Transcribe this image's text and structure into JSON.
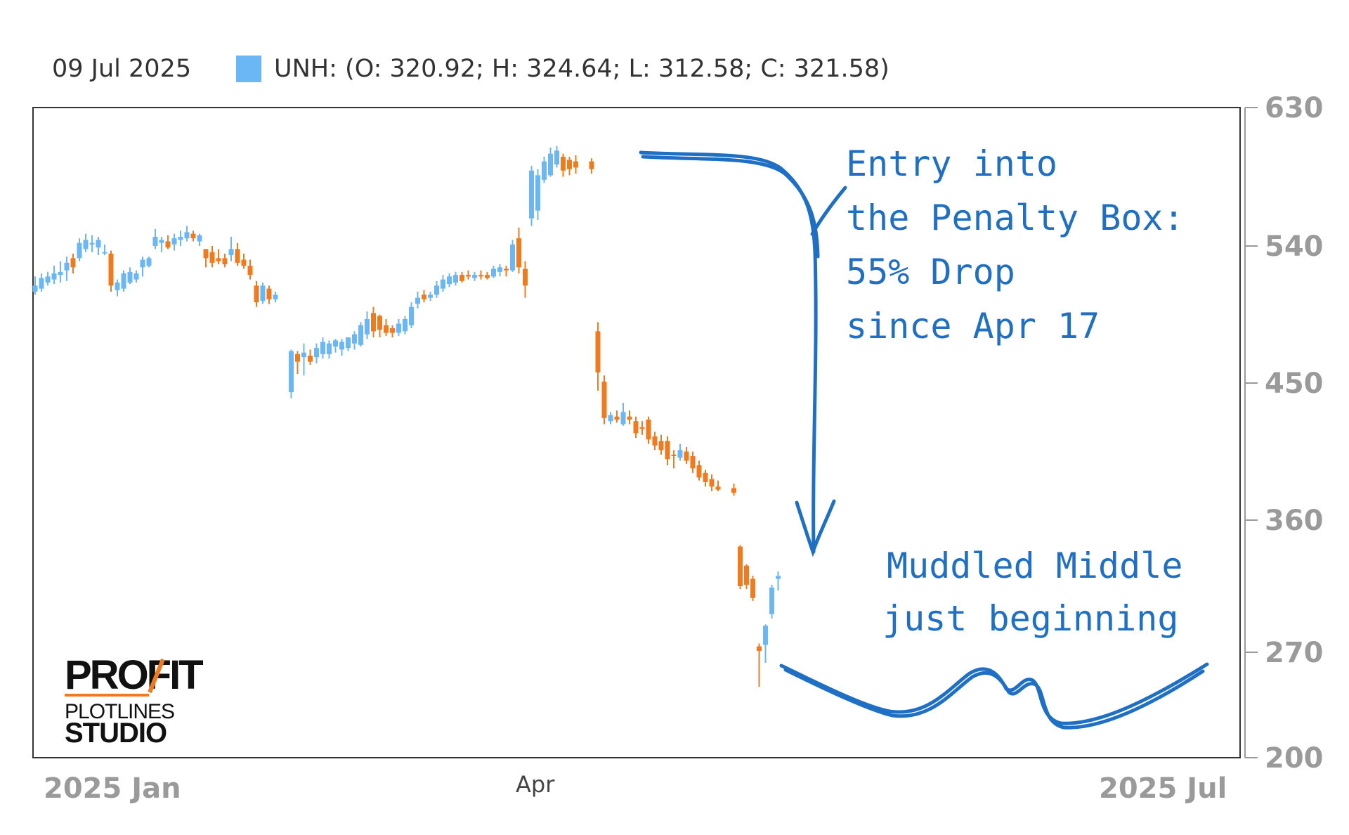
{
  "header": {
    "date": "09 Jul 2025",
    "ohlc": "UNH: (O: 320.92; H: 324.64; L: 312.58; C: 321.58)"
  },
  "annotations": {
    "entry_lines": [
      "Entry into",
      "the Penalty Box:",
      "55% Drop",
      "since Apr 17"
    ],
    "muddled_lines": [
      "Muddled Middle",
      "just beginning"
    ]
  },
  "logo": {
    "top": "PROFIT",
    "middle": "PLOTLINES",
    "bottom": "STUDIO"
  },
  "colors": {
    "up": "#6bb7f5",
    "down": "#f07a1e",
    "note": "#1f6fc5",
    "axis": "#9a9a9a"
  },
  "chart_data": {
    "type": "candlestick",
    "series": [
      {
        "name": "UNH"
      }
    ],
    "ylim": [
      200,
      630
    ],
    "yticks": [
      630,
      540,
      450,
      360,
      270,
      200
    ],
    "xlabels": [
      "2025 Jan",
      "Apr",
      "2025 Jul"
    ],
    "candles": [
      {
        "o": 510,
        "h": 520,
        "l": 508,
        "c": 514
      },
      {
        "o": 512,
        "h": 522,
        "l": 510,
        "c": 519
      },
      {
        "o": 516,
        "h": 523,
        "l": 514,
        "c": 520
      },
      {
        "o": 518,
        "h": 527,
        "l": 515,
        "c": 522
      },
      {
        "o": 521,
        "h": 530,
        "l": 516,
        "c": 523
      },
      {
        "o": 524,
        "h": 533,
        "l": 517,
        "c": 529
      },
      {
        "o": 532,
        "h": 535,
        "l": 522,
        "c": 526
      },
      {
        "o": 532,
        "h": 545,
        "l": 530,
        "c": 542
      },
      {
        "o": 538,
        "h": 548,
        "l": 536,
        "c": 544
      },
      {
        "o": 541,
        "h": 547,
        "l": 536,
        "c": 542
      },
      {
        "o": 539,
        "h": 546,
        "l": 534,
        "c": 544
      },
      {
        "o": 536,
        "h": 541,
        "l": 534,
        "c": 536
      },
      {
        "o": 535,
        "h": 537,
        "l": 510,
        "c": 514
      },
      {
        "o": 511,
        "h": 518,
        "l": 507,
        "c": 516
      },
      {
        "o": 512,
        "h": 524,
        "l": 510,
        "c": 522
      },
      {
        "o": 516,
        "h": 526,
        "l": 515,
        "c": 523
      },
      {
        "o": 518,
        "h": 524,
        "l": 516,
        "c": 522
      },
      {
        "o": 526,
        "h": 533,
        "l": 520,
        "c": 531
      },
      {
        "o": 527,
        "h": 533,
        "l": 526,
        "c": 532
      },
      {
        "o": 540,
        "h": 551,
        "l": 538,
        "c": 546
      },
      {
        "o": 542,
        "h": 546,
        "l": 536,
        "c": 544
      },
      {
        "o": 543,
        "h": 547,
        "l": 538,
        "c": 539
      },
      {
        "o": 541,
        "h": 548,
        "l": 537,
        "c": 545
      },
      {
        "o": 544,
        "h": 550,
        "l": 540,
        "c": 546
      },
      {
        "o": 545,
        "h": 553,
        "l": 543,
        "c": 549
      },
      {
        "o": 548,
        "h": 550,
        "l": 543,
        "c": 545
      },
      {
        "o": 543,
        "h": 548,
        "l": 540,
        "c": 547
      },
      {
        "o": 538,
        "h": 538,
        "l": 526,
        "c": 532
      },
      {
        "o": 536,
        "h": 540,
        "l": 526,
        "c": 529
      },
      {
        "o": 532,
        "h": 538,
        "l": 528,
        "c": 530
      },
      {
        "o": 532,
        "h": 535,
        "l": 526,
        "c": 528
      },
      {
        "o": 534,
        "h": 546,
        "l": 530,
        "c": 538
      },
      {
        "o": 538,
        "h": 542,
        "l": 527,
        "c": 529
      },
      {
        "o": 531,
        "h": 535,
        "l": 525,
        "c": 527
      },
      {
        "o": 527,
        "h": 531,
        "l": 518,
        "c": 521
      },
      {
        "o": 514,
        "h": 517,
        "l": 500,
        "c": 503
      },
      {
        "o": 504,
        "h": 516,
        "l": 502,
        "c": 514
      },
      {
        "o": 512,
        "h": 514,
        "l": 502,
        "c": 505
      },
      {
        "o": 505,
        "h": 510,
        "l": 503,
        "c": 508
      },
      {
        "o": 444,
        "h": 472,
        "l": 440,
        "c": 471
      },
      {
        "o": 469,
        "h": 471,
        "l": 456,
        "c": 464
      },
      {
        "o": 467,
        "h": 476,
        "l": 455,
        "c": 470
      },
      {
        "o": 468,
        "h": 472,
        "l": 462,
        "c": 464
      },
      {
        "o": 467,
        "h": 476,
        "l": 463,
        "c": 473
      },
      {
        "o": 469,
        "h": 480,
        "l": 466,
        "c": 477
      },
      {
        "o": 469,
        "h": 478,
        "l": 466,
        "c": 476
      },
      {
        "o": 474,
        "h": 479,
        "l": 470,
        "c": 478
      },
      {
        "o": 472,
        "h": 479,
        "l": 468,
        "c": 477
      },
      {
        "o": 473,
        "h": 480,
        "l": 471,
        "c": 480
      },
      {
        "o": 476,
        "h": 484,
        "l": 472,
        "c": 482
      },
      {
        "o": 475,
        "h": 490,
        "l": 474,
        "c": 488
      },
      {
        "o": 482,
        "h": 497,
        "l": 479,
        "c": 492
      },
      {
        "o": 496,
        "h": 500,
        "l": 480,
        "c": 484
      },
      {
        "o": 494,
        "h": 495,
        "l": 480,
        "c": 485
      },
      {
        "o": 488,
        "h": 492,
        "l": 481,
        "c": 483
      },
      {
        "o": 486,
        "h": 488,
        "l": 480,
        "c": 483
      },
      {
        "o": 483,
        "h": 492,
        "l": 481,
        "c": 489
      },
      {
        "o": 484,
        "h": 494,
        "l": 482,
        "c": 492
      },
      {
        "o": 488,
        "h": 503,
        "l": 486,
        "c": 500
      },
      {
        "o": 502,
        "h": 510,
        "l": 499,
        "c": 506
      },
      {
        "o": 508,
        "h": 511,
        "l": 503,
        "c": 505
      },
      {
        "o": 506,
        "h": 510,
        "l": 504,
        "c": 508
      },
      {
        "o": 508,
        "h": 517,
        "l": 506,
        "c": 514
      },
      {
        "o": 512,
        "h": 521,
        "l": 510,
        "c": 518
      },
      {
        "o": 515,
        "h": 522,
        "l": 513,
        "c": 520
      },
      {
        "o": 516,
        "h": 523,
        "l": 514,
        "c": 521
      },
      {
        "o": 521,
        "h": 523,
        "l": 516,
        "c": 517
      },
      {
        "o": 521,
        "h": 524,
        "l": 518,
        "c": 520
      },
      {
        "o": 519,
        "h": 523,
        "l": 517,
        "c": 521
      },
      {
        "o": 521,
        "h": 524,
        "l": 518,
        "c": 520
      },
      {
        "o": 521,
        "h": 523,
        "l": 518,
        "c": 519
      },
      {
        "o": 520,
        "h": 527,
        "l": 519,
        "c": 525
      },
      {
        "o": 523,
        "h": 528,
        "l": 520,
        "c": 526
      },
      {
        "o": 525,
        "h": 527,
        "l": 520,
        "c": 524
      },
      {
        "o": 524,
        "h": 544,
        "l": 523,
        "c": 541
      },
      {
        "o": 545,
        "h": 552,
        "l": 522,
        "c": 526
      },
      {
        "o": 525,
        "h": 530,
        "l": 506,
        "c": 514
      },
      {
        "o": 558,
        "h": 592,
        "l": 553,
        "c": 589
      },
      {
        "o": 563,
        "h": 590,
        "l": 557,
        "c": 586
      },
      {
        "o": 583,
        "h": 598,
        "l": 581,
        "c": 595
      },
      {
        "o": 586,
        "h": 604,
        "l": 585,
        "c": 600
      },
      {
        "o": 593,
        "h": 605,
        "l": 591,
        "c": 602
      },
      {
        "o": 598,
        "h": 600,
        "l": 585,
        "c": 589
      },
      {
        "o": 596,
        "h": 598,
        "l": 586,
        "c": 590
      },
      {
        "o": 595,
        "h": 599,
        "l": 587,
        "c": 591
      },
      {
        "o": 595,
        "h": 597,
        "l": 587,
        "c": 590
      },
      {
        "o": 484,
        "h": 490,
        "l": 445,
        "c": 457
      },
      {
        "o": 451,
        "h": 455,
        "l": 423,
        "c": 427
      },
      {
        "o": 425,
        "h": 431,
        "l": 423,
        "c": 429
      },
      {
        "o": 428,
        "h": 432,
        "l": 424,
        "c": 426
      },
      {
        "o": 423,
        "h": 437,
        "l": 422,
        "c": 431
      },
      {
        "o": 428,
        "h": 432,
        "l": 423,
        "c": 426
      },
      {
        "o": 425,
        "h": 428,
        "l": 414,
        "c": 417
      },
      {
        "o": 421,
        "h": 425,
        "l": 416,
        "c": 420
      },
      {
        "o": 426,
        "h": 428,
        "l": 410,
        "c": 413
      },
      {
        "o": 415,
        "h": 418,
        "l": 406,
        "c": 409
      },
      {
        "o": 412,
        "h": 416,
        "l": 403,
        "c": 406
      },
      {
        "o": 412,
        "h": 415,
        "l": 396,
        "c": 400
      },
      {
        "o": 403,
        "h": 406,
        "l": 394,
        "c": 402
      },
      {
        "o": 401,
        "h": 410,
        "l": 399,
        "c": 406
      },
      {
        "o": 405,
        "h": 408,
        "l": 397,
        "c": 399
      },
      {
        "o": 402,
        "h": 405,
        "l": 391,
        "c": 394
      },
      {
        "o": 396,
        "h": 399,
        "l": 386,
        "c": 388
      },
      {
        "o": 391,
        "h": 393,
        "l": 382,
        "c": 385
      },
      {
        "o": 387,
        "h": 390,
        "l": 379,
        "c": 382
      },
      {
        "o": 382,
        "h": 386,
        "l": 379,
        "c": 380
      },
      {
        "o": 381,
        "h": 384,
        "l": 376,
        "c": 378
      },
      {
        "o": 342,
        "h": 343,
        "l": 313,
        "c": 315
      },
      {
        "o": 329,
        "h": 330,
        "l": 313,
        "c": 316
      },
      {
        "o": 320,
        "h": 322,
        "l": 305,
        "c": 307
      },
      {
        "o": 274,
        "h": 276,
        "l": 247,
        "c": 271
      },
      {
        "o": 275,
        "h": 289,
        "l": 263,
        "c": 288
      },
      {
        "o": 296,
        "h": 316,
        "l": 293,
        "c": 314
      },
      {
        "o": 320,
        "h": 325,
        "l": 312,
        "c": 322
      }
    ],
    "gaps_after": [
      38,
      84,
      105
    ]
  }
}
